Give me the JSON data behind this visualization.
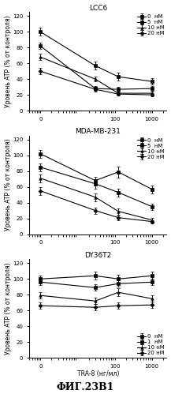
{
  "panels": [
    {
      "title": "LCC6",
      "series": [
        {
          "label": "0  нМ",
          "marker": "s",
          "y": [
            100,
            57,
            43,
            37
          ],
          "yerr": [
            5,
            5,
            5,
            4
          ]
        },
        {
          "label": "5  нМ",
          "marker": "s",
          "y": [
            82,
            28,
            27,
            28
          ],
          "yerr": [
            4,
            3,
            3,
            3
          ]
        },
        {
          "label": "10 нМ",
          "marker": "^",
          "y": [
            68,
            40,
            22,
            22
          ],
          "yerr": [
            4,
            3,
            2,
            2
          ]
        },
        {
          "label": "20 нМ",
          "marker": "D",
          "y": [
            50,
            27,
            21,
            20
          ],
          "yerr": [
            4,
            3,
            2,
            2
          ]
        }
      ],
      "legend_loc": "upper right",
      "ylim": [
        0,
        125
      ],
      "yticks": [
        0,
        20,
        40,
        60,
        80,
        100,
        120
      ]
    },
    {
      "title": "MDA-MB-231",
      "series": [
        {
          "label": "0  нМ",
          "marker": "s",
          "y": [
            102,
            68,
            79,
            57
          ],
          "yerr": [
            5,
            5,
            7,
            5
          ]
        },
        {
          "label": "5  нМ",
          "marker": "s",
          "y": [
            85,
            64,
            53,
            35
          ],
          "yerr": [
            5,
            6,
            5,
            4
          ]
        },
        {
          "label": "10 нМ",
          "marker": "^",
          "y": [
            71,
            47,
            29,
            18
          ],
          "yerr": [
            5,
            5,
            4,
            3
          ]
        },
        {
          "label": "20 нМ",
          "marker": "D",
          "y": [
            55,
            30,
            21,
            16
          ],
          "yerr": [
            5,
            4,
            3,
            2
          ]
        }
      ],
      "legend_loc": "upper right",
      "ylim": [
        0,
        125
      ],
      "yticks": [
        0,
        20,
        40,
        60,
        80,
        100,
        120
      ]
    },
    {
      "title": "DY36T2",
      "series": [
        {
          "label": "0  нМ",
          "marker": "s",
          "y": [
            100,
            104,
            100,
            104
          ],
          "yerr": [
            4,
            5,
            5,
            5
          ]
        },
        {
          "label": "1  нМ",
          "marker": "s",
          "y": [
            96,
            89,
            94,
            96
          ],
          "yerr": [
            4,
            4,
            4,
            4
          ]
        },
        {
          "label": "10 нМ",
          "marker": "^",
          "y": [
            79,
            72,
            83,
            75
          ],
          "yerr": [
            4,
            4,
            5,
            4
          ]
        },
        {
          "label": "20 нМ",
          "marker": "D",
          "y": [
            66,
            64,
            66,
            67
          ],
          "yerr": [
            4,
            4,
            4,
            4
          ]
        }
      ],
      "legend_loc": "lower right",
      "ylim": [
        0,
        125
      ],
      "yticks": [
        0,
        20,
        40,
        60,
        80,
        100,
        120
      ]
    }
  ],
  "x_positions": [
    1,
    30,
    125,
    1000
  ],
  "x_ticklabels": [
    "0",
    "100",
    "1000"
  ],
  "x_tickpos": [
    1,
    100,
    1000
  ],
  "xlabel": "TRA-8 (нг/мл)",
  "ylabel": "Уровень ATP (% от контроля)",
  "fig_caption": "ФИГ.23В1",
  "background_color": "#ffffff",
  "line_color": "black",
  "fontsize_title": 6.5,
  "fontsize_label": 5.5,
  "fontsize_tick": 5.0,
  "fontsize_legend": 5.0,
  "fontsize_caption": 9
}
